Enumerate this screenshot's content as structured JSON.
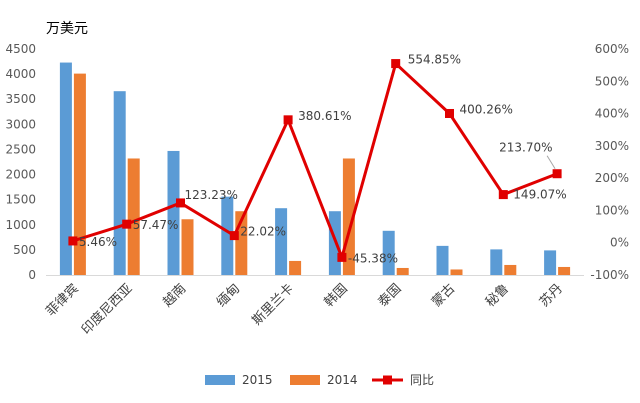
{
  "chart_data": {
    "type": "bar",
    "unit_label": "万美元",
    "categories": [
      "菲律宾",
      "印度尼西亚",
      "越南",
      "缅甸",
      "斯里兰卡",
      "韩国",
      "泰国",
      "蒙古",
      "秘鲁",
      "苏丹"
    ],
    "series": [
      {
        "name": "2015",
        "type": "bar",
        "axis": "left",
        "color": "#5B9BD5",
        "values": [
          4230,
          3660,
          2470,
          1560,
          1330,
          1270,
          880,
          580,
          510,
          490
        ]
      },
      {
        "name": "2014",
        "type": "bar",
        "axis": "left",
        "color": "#ED7D31",
        "values": [
          4010,
          2320,
          1110,
          1270,
          280,
          2320,
          140,
          110,
          200,
          160
        ]
      },
      {
        "name": "同比",
        "type": "line",
        "axis": "right",
        "color": "#E00000",
        "marker": "square",
        "values": [
          5.46,
          57.47,
          123.23,
          22.02,
          380.61,
          -45.38,
          554.85,
          400.26,
          149.07,
          213.7
        ],
        "labels": [
          "5.46%",
          "57.47%",
          "123.23%",
          "22.02%",
          "380.61%",
          "-45.38%",
          "554.85%",
          "400.26%",
          "149.07%",
          "213.70%"
        ]
      }
    ],
    "y_left": {
      "min": 0,
      "max": 4500,
      "step": 500,
      "ticks": [
        "0",
        "500",
        "1000",
        "1500",
        "2000",
        "2500",
        "3000",
        "3500",
        "4000",
        "4500"
      ]
    },
    "y_right": {
      "min": -100,
      "max": 600,
      "step": 100,
      "ticks": [
        "-100%",
        "0%",
        "100%",
        "200%",
        "300%",
        "400%",
        "500%",
        "600%"
      ]
    },
    "grid": false,
    "legend": "bottom"
  }
}
